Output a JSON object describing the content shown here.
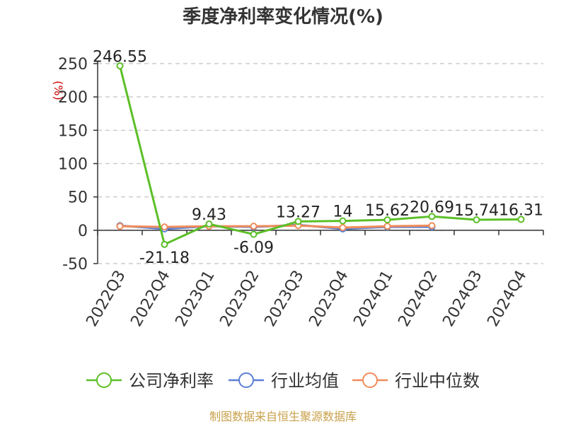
{
  "chart_data": {
    "type": "line",
    "title": "季度净利率变化情况(%)",
    "ylabel": "(%)",
    "xlabel": "",
    "ylim": [
      -50,
      250
    ],
    "yticks": [
      250,
      200,
      150,
      100,
      50,
      0,
      -50
    ],
    "grid": true,
    "legend_position": "bottom",
    "categories": [
      "2022Q3",
      "2022Q4",
      "2023Q1",
      "2023Q2",
      "2023Q3",
      "2023Q4",
      "2024Q1",
      "2024Q2",
      "2024Q3",
      "2024Q4"
    ],
    "series": [
      {
        "name": "公司净利率",
        "color": "#5bbf26",
        "values": [
          246.55,
          -21.18,
          9.43,
          -6.09,
          13.27,
          14,
          15.62,
          20.69,
          15.74,
          16.31
        ],
        "labels": [
          "246.55",
          "-21.18",
          "9.43",
          "-6.09",
          "13.27",
          "14",
          "15.62",
          "20.69",
          "15.74",
          "16.31"
        ]
      },
      {
        "name": "行业均值",
        "color": "#5b7fd6",
        "values": [
          7,
          2,
          6,
          5,
          8,
          2,
          5,
          5,
          null,
          null
        ]
      },
      {
        "name": "行业中位数",
        "color": "#f08c5a",
        "values": [
          6,
          5,
          6,
          6,
          7,
          4,
          6,
          7,
          null,
          null
        ]
      }
    ]
  },
  "source_text": "制图数据来自恒生聚源数据库"
}
